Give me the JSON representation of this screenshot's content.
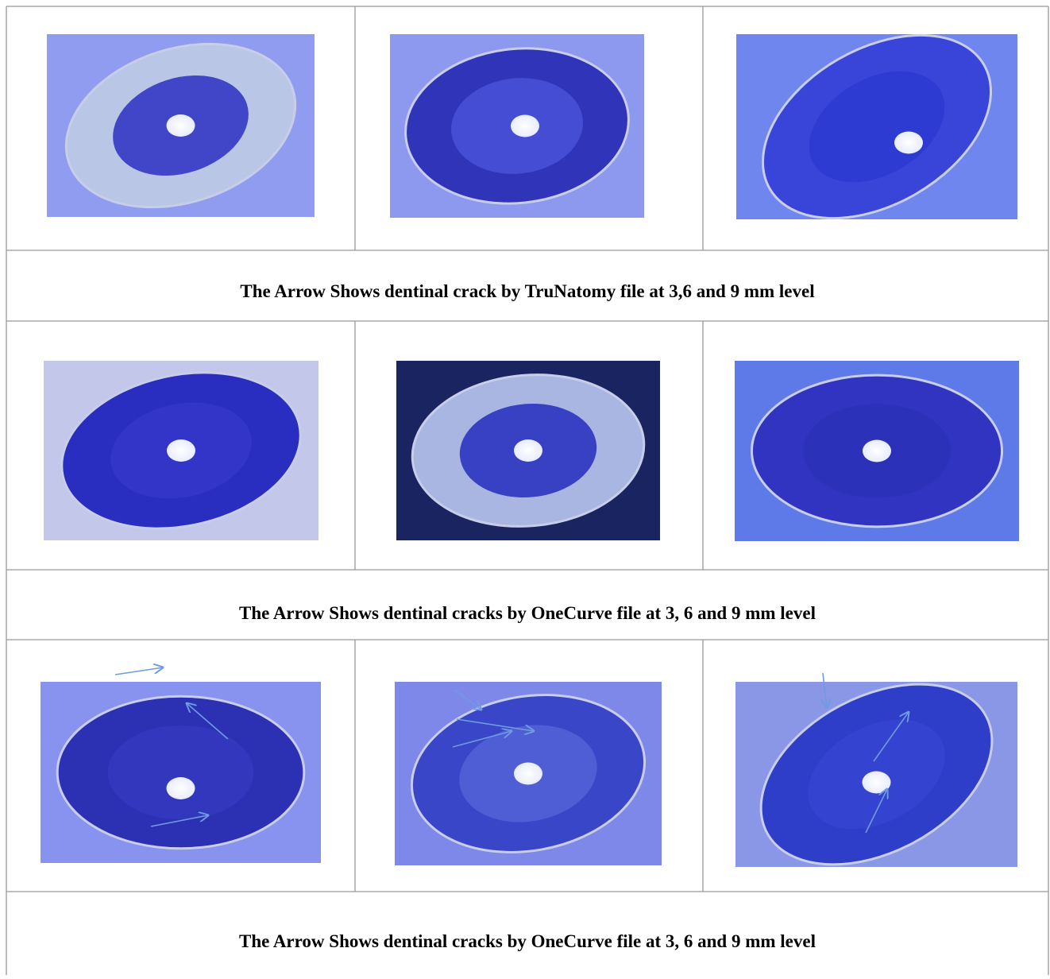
{
  "table": {
    "captions": [
      "The Arrow Shows dentinal crack by TruNatomy file at 3,6 and 9 mm level",
      "The Arrow Shows dentinal cracks by OneCurve file at 3, 6 and 9 mm level",
      "The Arrow Shows dentinal cracks by OneCurve file at 3, 6 and 9 mm level"
    ]
  }
}
